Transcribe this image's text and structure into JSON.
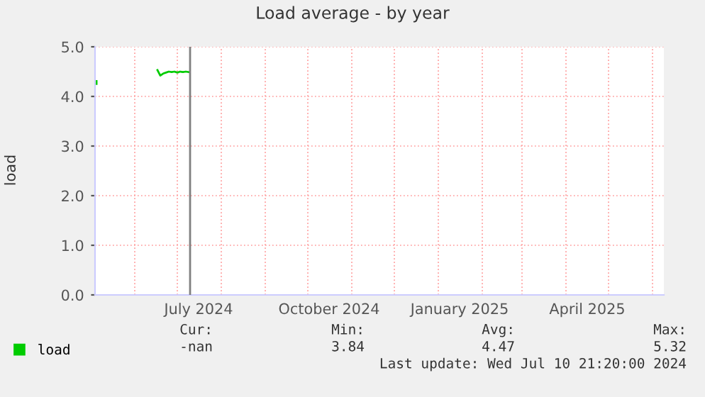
{
  "chart_data": {
    "type": "line",
    "title": "Load average - by year",
    "ylabel": "load",
    "x": [
      "2024-05-04",
      "2024-05-05",
      "2024-06-17",
      "2024-06-19",
      "2024-06-21",
      "2024-06-23",
      "2024-06-25",
      "2024-06-27",
      "2024-06-29",
      "2024-07-01",
      "2024-07-03",
      "2024-07-05",
      "2024-07-07",
      "2024-07-09"
    ],
    "series": [
      {
        "name": "load",
        "color": "#00cc00",
        "values": [
          4.28,
          null,
          4.53,
          4.42,
          4.46,
          4.48,
          4.5,
          4.49,
          4.5,
          4.48,
          4.5,
          4.49,
          4.5,
          4.49
        ]
      }
    ],
    "xlim": [
      "2024-05-04",
      "2025-06-09"
    ],
    "xticks": [
      {
        "value": "2024-06-01",
        "label": null
      },
      {
        "value": "2024-07-01",
        "label": null
      },
      {
        "value": "2024-07-16",
        "label": "July 2024"
      },
      {
        "value": "2024-08-01",
        "label": null
      },
      {
        "value": "2024-09-01",
        "label": null
      },
      {
        "value": "2024-10-01",
        "label": null
      },
      {
        "value": "2024-10-16",
        "label": "October 2024"
      },
      {
        "value": "2024-11-01",
        "label": null
      },
      {
        "value": "2024-12-01",
        "label": null
      },
      {
        "value": "2025-01-01",
        "label": null
      },
      {
        "value": "2025-01-16",
        "label": "January 2025"
      },
      {
        "value": "2025-02-01",
        "label": null
      },
      {
        "value": "2025-03-01",
        "label": null
      },
      {
        "value": "2025-04-01",
        "label": null
      },
      {
        "value": "2025-04-16",
        "label": "April 2025"
      },
      {
        "value": "2025-05-01",
        "label": null
      },
      {
        "value": "2025-06-01",
        "label": null
      }
    ],
    "ylim": [
      0,
      5
    ],
    "yticks": [
      {
        "value": 0,
        "label": "0.0"
      },
      {
        "value": 1,
        "label": "1.0"
      },
      {
        "value": 2,
        "label": "2.0"
      },
      {
        "value": 3,
        "label": "3.0"
      },
      {
        "value": 4,
        "label": "4.0"
      },
      {
        "value": 5,
        "label": "5.0"
      }
    ],
    "ref_lines": [
      {
        "axis": "x",
        "value": "2024-07-10",
        "color": "#808080"
      }
    ],
    "grid": true,
    "legend": "bottom left",
    "marker": "none",
    "line_style": "solid",
    "annotations": [
      "Cur:",
      "Min:",
      "Avg:",
      "Max:",
      "-nan",
      "3.84",
      "4.47",
      "5.32",
      "Last update: Wed Jul 10 21:20:00 2024"
    ]
  }
}
